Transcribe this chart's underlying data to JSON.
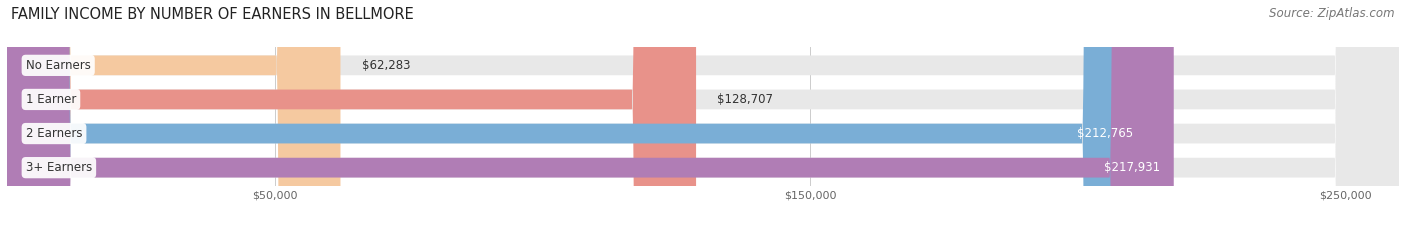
{
  "title": "FAMILY INCOME BY NUMBER OF EARNERS IN BELLMORE",
  "source": "Source: ZipAtlas.com",
  "categories": [
    "No Earners",
    "1 Earner",
    "2 Earners",
    "3+ Earners"
  ],
  "values": [
    62283,
    128707,
    212765,
    217931
  ],
  "bar_colors": [
    "#f5c9a0",
    "#e8928a",
    "#7aaed6",
    "#b07db5"
  ],
  "bar_bg_color": "#e8e8e8",
  "label_colors": [
    "#555555",
    "#555555",
    "#ffffff",
    "#ffffff"
  ],
  "xlim": [
    0,
    260000
  ],
  "xticks": [
    50000,
    150000,
    250000
  ],
  "xtick_labels": [
    "$50,000",
    "$150,000",
    "$250,000"
  ],
  "fig_bg_color": "#ffffff",
  "bar_bg_full": 260000,
  "title_fontsize": 10.5,
  "source_fontsize": 8.5,
  "label_fontsize": 8.5,
  "category_fontsize": 8.5,
  "value_labels": [
    "$62,283",
    "$128,707",
    "$212,765",
    "$217,931"
  ]
}
